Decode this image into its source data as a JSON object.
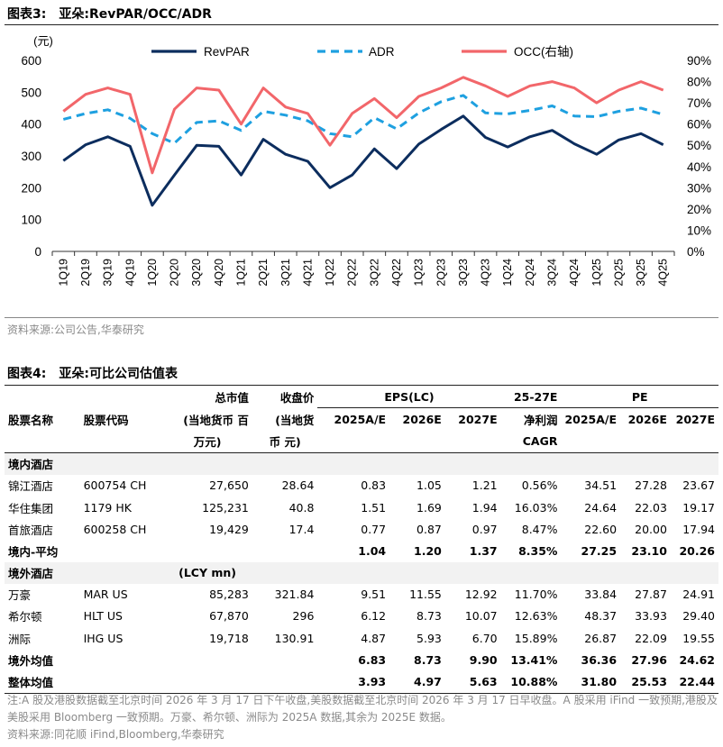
{
  "fig3": {
    "label": "图表3:",
    "title": "亚朵:RevPAR/OCC/ADR"
  },
  "source1": "资料来源:公司公告,华泰研究",
  "chart_data": {
    "type": "line",
    "title": "亚朵:RevPAR/OCC/ADR",
    "y_unit_label": "(元)",
    "ylim": [
      0,
      600
    ],
    "yticks": [
      "0",
      "100",
      "200",
      "300",
      "400",
      "500",
      "600"
    ],
    "y2lim": [
      0,
      90
    ],
    "y2ticks": [
      "0%",
      "10%",
      "20%",
      "30%",
      "40%",
      "50%",
      "60%",
      "70%",
      "80%",
      "90%"
    ],
    "categories": [
      "1Q19",
      "2Q19",
      "3Q19",
      "4Q19",
      "1Q20",
      "2Q20",
      "3Q20",
      "4Q20",
      "1Q21",
      "2Q21",
      "3Q21",
      "4Q21",
      "1Q22",
      "2Q22",
      "3Q22",
      "4Q22",
      "1Q23",
      "2Q23",
      "3Q23",
      "4Q23",
      "1Q24",
      "2Q24",
      "3Q24",
      "4Q24",
      "1Q25",
      "2Q25",
      "3Q25",
      "4Q25"
    ],
    "series": [
      {
        "name": "RevPAR",
        "axis": "left",
        "color": "#0c2d5e",
        "style": "solid",
        "values": [
          285,
          335,
          360,
          330,
          145,
          240,
          333,
          330,
          240,
          352,
          305,
          283,
          200,
          240,
          322,
          260,
          337,
          383,
          425,
          358,
          328,
          360,
          380,
          338,
          305,
          350,
          370,
          335
        ]
      },
      {
        "name": "ADR",
        "axis": "left",
        "color": "#1ea0e0",
        "style": "dashed",
        "values": [
          415,
          433,
          445,
          418,
          370,
          340,
          405,
          410,
          380,
          440,
          428,
          410,
          370,
          360,
          420,
          385,
          435,
          470,
          490,
          435,
          432,
          443,
          457,
          425,
          423,
          440,
          450,
          430
        ]
      },
      {
        "name": "OCC(右轴)",
        "axis": "right",
        "color": "#f2666a",
        "style": "solid",
        "values": [
          66,
          74,
          77,
          74,
          37,
          67,
          77,
          76,
          60,
          77,
          68,
          65,
          50,
          65,
          72,
          63,
          73,
          77,
          82,
          78,
          73,
          78,
          80,
          77,
          70,
          76,
          80,
          76
        ]
      }
    ]
  },
  "fig4": {
    "label": "图表4:",
    "title": "亚朵:可比公司估值表"
  },
  "table": {
    "h_eps": "EPS(LC)",
    "h_cagr_top": "25-27E",
    "h_pe": "PE",
    "h_mcap": [
      "总市值",
      "(当地货币 百",
      "万元)"
    ],
    "h_price": [
      "收盘价",
      "(当地货",
      "币 元)"
    ],
    "h_name": "股票名称",
    "h_code": "股票代码",
    "h_years": [
      "2025A/E",
      "2026E",
      "2027E"
    ],
    "h_pe_years": [
      "2025A/E",
      "2026E",
      "2027E"
    ],
    "h_cagr": [
      "净利润",
      "CAGR"
    ],
    "sec_dom": "境内酒店",
    "sec_for": "境外酒店",
    "lcy": "(LCY mn)",
    "dom_rows": [
      {
        "name": "锦江酒店",
        "code": "600754 CH",
        "mcap": "27,650",
        "price": "28.64",
        "e25": "0.83",
        "e26": "1.05",
        "e27": "1.21",
        "cagr": "0.56%",
        "p25": "34.51",
        "p26": "27.28",
        "p27": "23.67"
      },
      {
        "name": "华住集团",
        "code": "1179 HK",
        "mcap": "125,231",
        "price": "40.8",
        "e25": "1.51",
        "e26": "1.69",
        "e27": "1.94",
        "cagr": "16.03%",
        "p25": "24.64",
        "p26": "22.03",
        "p27": "19.17"
      },
      {
        "name": "首旅酒店",
        "code": "600258 CH",
        "mcap": "19,429",
        "price": "17.4",
        "e25": "0.77",
        "e26": "0.87",
        "e27": "0.97",
        "cagr": "8.47%",
        "p25": "22.60",
        "p26": "20.00",
        "p27": "17.94"
      }
    ],
    "dom_avg": {
      "name": "境内-平均",
      "e25": "1.04",
      "e26": "1.20",
      "e27": "1.37",
      "cagr": "8.35%",
      "p25": "27.25",
      "p26": "23.10",
      "p27": "20.26"
    },
    "for_rows": [
      {
        "name": "万豪",
        "code": "MAR US",
        "mcap": "85,283",
        "price": "321.84",
        "e25": "9.51",
        "e26": "11.55",
        "e27": "12.92",
        "cagr": "11.70%",
        "p25": "33.84",
        "p26": "27.87",
        "p27": "24.91"
      },
      {
        "name": "希尔顿",
        "code": "HLT US",
        "mcap": "67,870",
        "price": "296",
        "e25": "6.12",
        "e26": "8.73",
        "e27": "10.07",
        "cagr": "12.63%",
        "p25": "48.37",
        "p26": "33.93",
        "p27": "29.40"
      },
      {
        "name": "洲际",
        "code": "IHG US",
        "mcap": "19,718",
        "price": "130.91",
        "e25": "4.87",
        "e26": "5.93",
        "e27": "6.70",
        "cagr": "15.89%",
        "p25": "26.87",
        "p26": "22.09",
        "p27": "19.55"
      }
    ],
    "for_avg": {
      "name": "境外均值",
      "e25": "6.83",
      "e26": "8.73",
      "e27": "9.90",
      "cagr": "13.41%",
      "p25": "36.36",
      "p26": "27.96",
      "p27": "24.62"
    },
    "total_avg": {
      "name": "整体均值",
      "e25": "3.93",
      "e26": "4.97",
      "e27": "5.63",
      "cagr": "10.88%",
      "p25": "31.80",
      "p26": "25.53",
      "p27": "22.44"
    }
  },
  "note": "注:A 股及港股数据截至北京时间 2026 年 3 月 17 日下午收盘,美股数据截至北京时间 2026 年 3 月 17 日早收盘。A 股采用 iFind 一致预期,港股及美股采用 Bloomberg 一致预期。万豪、希尔顿、洲际为 2025A 数据,其余为 2025E 数据。",
  "source2": "资料来源:同花顺 iFind,Bloomberg,华泰研究"
}
